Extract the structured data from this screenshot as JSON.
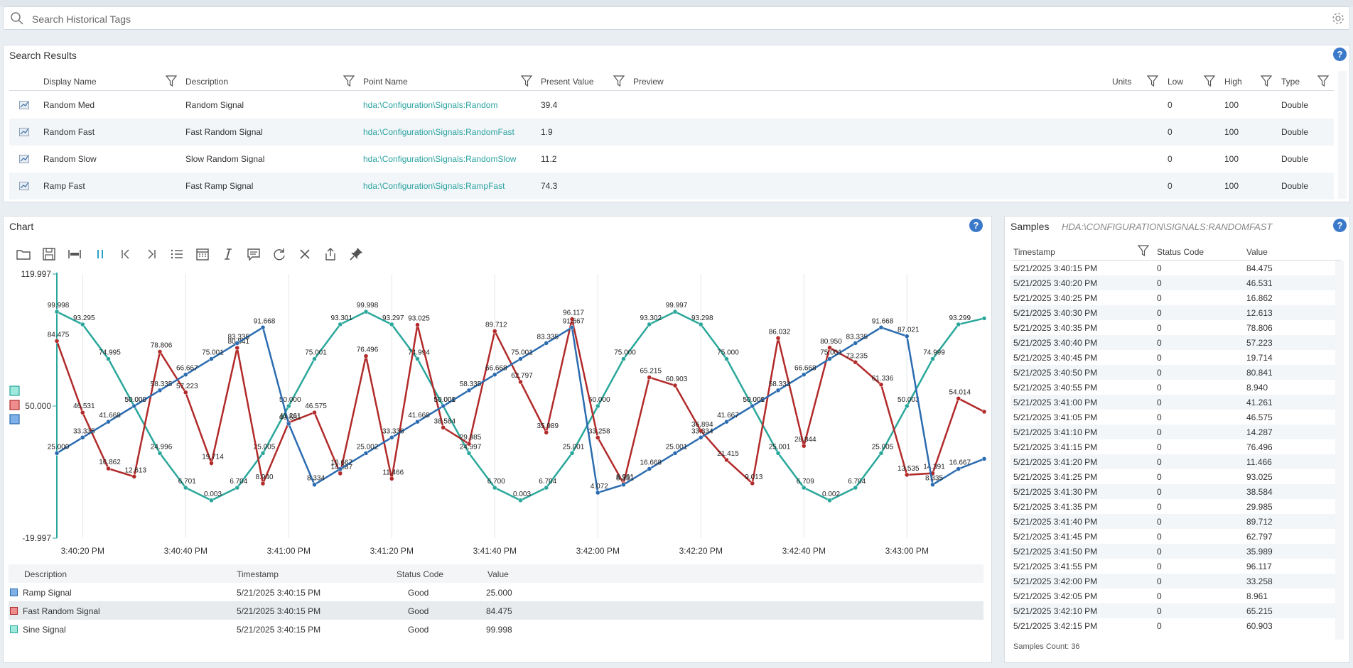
{
  "search": {
    "placeholder": "Search Historical Tags"
  },
  "search_results": {
    "title": "Search Results",
    "columns": [
      "Display Name",
      "Description",
      "Point Name",
      "Present Value",
      "Preview",
      "Units",
      "Low",
      "High",
      "Type"
    ],
    "rows": [
      {
        "display": "Random Med",
        "desc": "Random Signal",
        "point": "hda:\\Configuration\\Signals:Random",
        "value": "39.4",
        "units": "",
        "low": "0",
        "high": "100",
        "type": "Double"
      },
      {
        "display": "Random Fast",
        "desc": "Fast Random Signal",
        "point": "hda:\\Configuration\\Signals:RandomFast",
        "value": "1.9",
        "units": "",
        "low": "0",
        "high": "100",
        "type": "Double"
      },
      {
        "display": "Random Slow",
        "desc": "Slow Random Signal",
        "point": "hda:\\Configuration\\Signals:RandomSlow",
        "value": "11.2",
        "units": "",
        "low": "0",
        "high": "100",
        "type": "Double"
      },
      {
        "display": "Ramp Fast",
        "desc": "Fast Ramp Signal",
        "point": "hda:\\Configuration\\Signals:RampFast",
        "value": "74.3",
        "units": "",
        "low": "0",
        "high": "100",
        "type": "Double"
      }
    ]
  },
  "chart": {
    "title": "Chart",
    "toolbar": [
      "folder-icon",
      "save-icon",
      "fit-width-icon",
      "pause-icon",
      "first-icon",
      "last-icon",
      "list-icon",
      "calendar-icon",
      "italic-icon",
      "comment-icon",
      "refresh-icon",
      "close-icon",
      "export-icon",
      "pin-icon"
    ],
    "legend_table": {
      "columns": [
        "Description",
        "Timestamp",
        "Status Code",
        "Value"
      ],
      "rows": [
        {
          "desc": "Ramp Signal",
          "ts": "5/21/2025 3:40:15 PM",
          "status": "Good",
          "value": "25.000",
          "color": "#2b6cb0",
          "fill": "#7fb0e8"
        },
        {
          "desc": "Fast Random Signal",
          "ts": "5/21/2025 3:40:15 PM",
          "status": "Good",
          "value": "84.475",
          "color": "#b22a2a",
          "fill": "#ee8d8d"
        },
        {
          "desc": "Sine Signal",
          "ts": "5/21/2025 3:40:15 PM",
          "status": "Good",
          "value": "99.998",
          "color": "#2aa79b",
          "fill": "#9ee8dc"
        }
      ]
    }
  },
  "chart_data": {
    "type": "line",
    "ylim": [
      -19.997,
      119.997
    ],
    "ytick_labels": [
      "119.997",
      "50.000",
      "-19.997"
    ],
    "xtick_labels": [
      "3:40:20 PM",
      "3:40:40 PM",
      "3:41:00 PM",
      "3:41:20 PM",
      "3:41:40 PM",
      "3:42:00 PM",
      "3:42:20 PM",
      "3:42:40 PM",
      "3:43:00 PM"
    ],
    "x_start": "3:40:15 PM",
    "sample_interval_s": 5,
    "series": [
      {
        "name": "Sine Signal",
        "color": "#2aa79b",
        "values": [
          99.998,
          93.295,
          74.995,
          50.0,
          24.996,
          6.701,
          0.003,
          6.704,
          25.005,
          50.0,
          75.001,
          93.301,
          99.998,
          93.297,
          74.994,
          50.0,
          24.997,
          6.7,
          0.003,
          6.704,
          25.001,
          50.0,
          75.0,
          93.302,
          99.997,
          93.298,
          75.0,
          50.0,
          25.001,
          6.709,
          0.002,
          6.704,
          25.005,
          50.003,
          74.999,
          93.299,
          96.5
        ]
      },
      {
        "name": "Fast Random Signal",
        "color": "#b22a2a",
        "values": [
          84.475,
          46.531,
          16.862,
          12.613,
          78.806,
          57.223,
          19.714,
          80.841,
          8.94,
          41.261,
          46.575,
          14.287,
          76.496,
          11.466,
          93.025,
          38.584,
          29.985,
          89.712,
          62.797,
          35.989,
          96.117,
          33.258,
          8.961,
          65.215,
          60.903,
          36.894,
          21.415,
          9.013,
          86.032,
          28.844,
          80.95,
          73.235,
          61.336,
          13.535,
          14.391,
          54.014,
          47.0
        ]
      },
      {
        "name": "Ramp Signal",
        "color": "#2b6cb0",
        "values": [
          25.0,
          33.335,
          41.668,
          50.0,
          58.335,
          66.667,
          75.001,
          83.335,
          91.668,
          40.581,
          8.334,
          16.667,
          25.002,
          33.336,
          41.668,
          50.001,
          58.335,
          66.668,
          75.001,
          83.335,
          91.667,
          4.072,
          8.331,
          16.668,
          25.001,
          33.334,
          41.667,
          50.001,
          58.333,
          66.668,
          75.001,
          83.335,
          91.668,
          87.021,
          8.335,
          16.667,
          22.0
        ]
      }
    ]
  },
  "samples": {
    "title": "Samples",
    "tag": "HDA:\\CONFIGURATION\\SIGNALS:RANDOMFAST",
    "columns": [
      "Timestamp",
      "Status Code",
      "Value"
    ],
    "rows": [
      [
        "5/21/2025 3:40:15 PM",
        "0",
        "84.475"
      ],
      [
        "5/21/2025 3:40:20 PM",
        "0",
        "46.531"
      ],
      [
        "5/21/2025 3:40:25 PM",
        "0",
        "16.862"
      ],
      [
        "5/21/2025 3:40:30 PM",
        "0",
        "12.613"
      ],
      [
        "5/21/2025 3:40:35 PM",
        "0",
        "78.806"
      ],
      [
        "5/21/2025 3:40:40 PM",
        "0",
        "57.223"
      ],
      [
        "5/21/2025 3:40:45 PM",
        "0",
        "19.714"
      ],
      [
        "5/21/2025 3:40:50 PM",
        "0",
        "80.841"
      ],
      [
        "5/21/2025 3:40:55 PM",
        "0",
        "8.940"
      ],
      [
        "5/21/2025 3:41:00 PM",
        "0",
        "41.261"
      ],
      [
        "5/21/2025 3:41:05 PM",
        "0",
        "46.575"
      ],
      [
        "5/21/2025 3:41:10 PM",
        "0",
        "14.287"
      ],
      [
        "5/21/2025 3:41:15 PM",
        "0",
        "76.496"
      ],
      [
        "5/21/2025 3:41:20 PM",
        "0",
        "11.466"
      ],
      [
        "5/21/2025 3:41:25 PM",
        "0",
        "93.025"
      ],
      [
        "5/21/2025 3:41:30 PM",
        "0",
        "38.584"
      ],
      [
        "5/21/2025 3:41:35 PM",
        "0",
        "29.985"
      ],
      [
        "5/21/2025 3:41:40 PM",
        "0",
        "89.712"
      ],
      [
        "5/21/2025 3:41:45 PM",
        "0",
        "62.797"
      ],
      [
        "5/21/2025 3:41:50 PM",
        "0",
        "35.989"
      ],
      [
        "5/21/2025 3:41:55 PM",
        "0",
        "96.117"
      ],
      [
        "5/21/2025 3:42:00 PM",
        "0",
        "33.258"
      ],
      [
        "5/21/2025 3:42:05 PM",
        "0",
        "8.961"
      ],
      [
        "5/21/2025 3:42:10 PM",
        "0",
        "65.215"
      ],
      [
        "5/21/2025 3:42:15 PM",
        "0",
        "60.903"
      ]
    ],
    "count_label": "Samples Count: 36"
  }
}
